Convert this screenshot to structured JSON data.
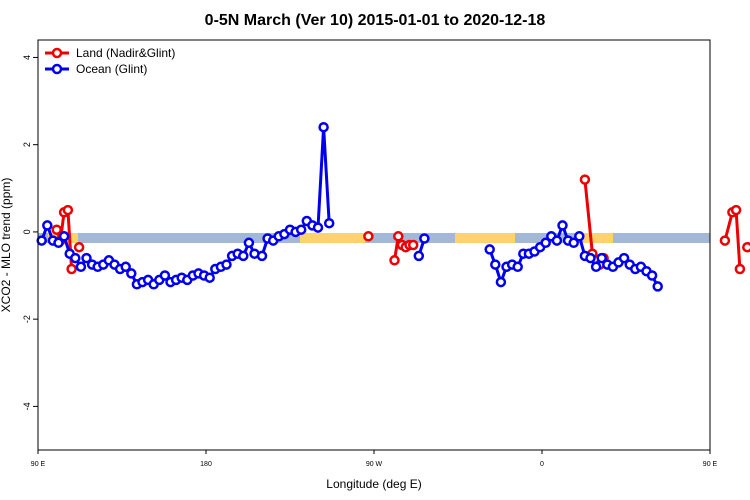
{
  "chart_data": {
    "type": "line",
    "title": "0-5N March (Ver 10)   2015-01-01 to 2020-12-18",
    "xlabel": "Longitude (deg E)",
    "ylabel": "XCO2 - MLO trend (ppm)",
    "xlim": [
      90,
      450
    ],
    "ylim": [
      -5.0,
      4.4
    ],
    "yticks": [
      -4,
      -2,
      0,
      2,
      4
    ],
    "xticks": [
      {
        "value": 90,
        "label": "90 E"
      },
      {
        "value": 180,
        "label": "180"
      },
      {
        "value": 270,
        "label": "90 W"
      },
      {
        "value": 360,
        "label": "0"
      },
      {
        "value": 450,
        "label": "90 E"
      },
      {
        "value": 540,
        "label": "180"
      }
    ],
    "legend": {
      "position": "top-left"
    },
    "series": [
      {
        "name": "Land (Nadir&Glint)",
        "color": "#ee0000",
        "segments": [
          [
            [
              100,
              0.05
            ],
            [
              102,
              -0.2
            ],
            [
              104,
              0.45
            ],
            [
              106,
              0.5
            ],
            [
              108,
              -0.85
            ]
          ],
          [
            [
              112,
              -0.35
            ]
          ],
          [
            [
              267,
              -0.1
            ]
          ],
          [
            [
              281,
              -0.65
            ],
            [
              283,
              -0.1
            ],
            [
              285,
              -0.3
            ],
            [
              287,
              -0.35
            ],
            [
              289,
              -0.3
            ],
            [
              291,
              -0.3
            ]
          ],
          [
            [
              383,
              1.2
            ],
            [
              387,
              -0.5
            ],
            [
              389,
              -0.65
            ],
            [
              391,
              -0.75
            ],
            [
              393,
              -0.6
            ]
          ],
          [
            [
              458,
              -0.2
            ],
            [
              462,
              0.45
            ],
            [
              464,
              0.5
            ],
            [
              466,
              -0.85
            ]
          ],
          [
            [
              470,
              -0.35
            ]
          ]
        ]
      },
      {
        "name": "Ocean (Glint)",
        "color": "#0000ee",
        "segments": [
          [
            [
              92,
              -0.2
            ],
            [
              95,
              0.15
            ],
            [
              98,
              -0.2
            ],
            [
              101,
              -0.25
            ],
            [
              104,
              -0.1
            ],
            [
              107,
              -0.5
            ],
            [
              110,
              -0.6
            ],
            [
              113,
              -0.8
            ],
            [
              116,
              -0.6
            ],
            [
              119,
              -0.75
            ],
            [
              122,
              -0.8
            ],
            [
              125,
              -0.75
            ],
            [
              128,
              -0.65
            ],
            [
              131,
              -0.75
            ],
            [
              134,
              -0.85
            ],
            [
              137,
              -0.8
            ],
            [
              140,
              -0.95
            ],
            [
              143,
              -1.2
            ],
            [
              146,
              -1.15
            ],
            [
              149,
              -1.1
            ],
            [
              152,
              -1.2
            ],
            [
              155,
              -1.1
            ],
            [
              158,
              -1.0
            ],
            [
              161,
              -1.15
            ],
            [
              164,
              -1.1
            ],
            [
              167,
              -1.05
            ],
            [
              170,
              -1.1
            ],
            [
              173,
              -1.0
            ],
            [
              176,
              -0.95
            ],
            [
              179,
              -1.0
            ],
            [
              182,
              -1.05
            ],
            [
              185,
              -0.85
            ],
            [
              188,
              -0.8
            ],
            [
              191,
              -0.75
            ],
            [
              194,
              -0.55
            ],
            [
              197,
              -0.5
            ],
            [
              200,
              -0.55
            ],
            [
              203,
              -0.25
            ],
            [
              206,
              -0.5
            ]
          ],
          [
            [
              210,
              -0.55
            ],
            [
              213,
              -0.15
            ],
            [
              216,
              -0.2
            ],
            [
              219,
              -0.1
            ],
            [
              222,
              -0.05
            ],
            [
              225,
              0.05
            ],
            [
              228,
              0.0
            ],
            [
              231,
              0.05
            ],
            [
              234,
              0.25
            ],
            [
              237,
              0.15
            ],
            [
              240,
              0.1
            ],
            [
              243,
              2.4
            ],
            [
              246,
              0.2
            ]
          ],
          [
            [
              294,
              -0.55
            ],
            [
              297,
              -0.15
            ]
          ],
          [
            [
              332,
              -0.4
            ],
            [
              335,
              -0.75
            ],
            [
              338,
              -1.15
            ],
            [
              341,
              -0.8
            ],
            [
              344,
              -0.75
            ],
            [
              347,
              -0.8
            ],
            [
              350,
              -0.5
            ],
            [
              353,
              -0.5
            ],
            [
              356,
              -0.45
            ],
            [
              359,
              -0.35
            ],
            [
              362,
              -0.25
            ],
            [
              365,
              -0.1
            ],
            [
              368,
              -0.2
            ],
            [
              371,
              0.15
            ],
            [
              374,
              -0.2
            ],
            [
              377,
              -0.25
            ],
            [
              380,
              -0.1
            ],
            [
              383,
              -0.55
            ],
            [
              386,
              -0.6
            ],
            [
              389,
              -0.8
            ],
            [
              392,
              -0.6
            ],
            [
              395,
              -0.75
            ],
            [
              398,
              -0.8
            ],
            [
              401,
              -0.7
            ],
            [
              404,
              -0.6
            ],
            [
              407,
              -0.75
            ],
            [
              410,
              -0.85
            ],
            [
              413,
              -0.8
            ],
            [
              416,
              -0.9
            ],
            [
              419,
              -1.0
            ],
            [
              422,
              -1.25
            ]
          ]
        ]
      }
    ]
  }
}
